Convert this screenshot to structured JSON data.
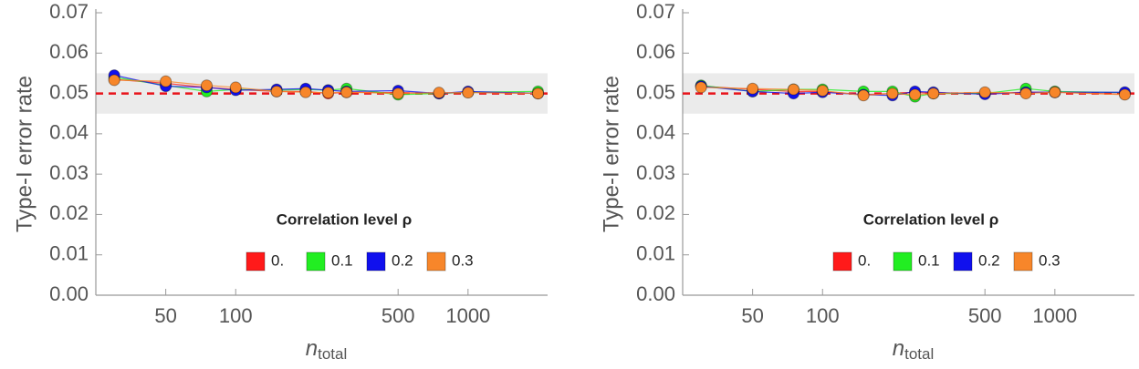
{
  "chart_data": [
    {
      "type": "line",
      "ylabel": "Type-I error rate",
      "xlabel": "n",
      "xlabel_sub": "total",
      "legend_title": "Correlation level ρ",
      "legend": "lower right",
      "xscale": "log",
      "x": [
        30,
        50,
        75,
        100,
        150,
        200,
        250,
        300,
        500,
        750,
        1000,
        2000
      ],
      "xlim": [
        25,
        2200
      ],
      "xticks": [
        50,
        100,
        500,
        1000
      ],
      "ylim": [
        0,
        0.07
      ],
      "yticks": [
        {
          "value": 0,
          "label": "0.00"
        },
        {
          "value": 0.01,
          "label": "0.01"
        },
        {
          "value": 0.02,
          "label": "0.02"
        },
        {
          "value": 0.03,
          "label": "0.03"
        },
        {
          "value": 0.04,
          "label": "0.04"
        },
        {
          "value": 0.05,
          "label": "0.05"
        },
        {
          "value": 0.06,
          "label": "0.06"
        },
        {
          "value": 0.07,
          "label": "0.07"
        }
      ],
      "band": [
        0.045,
        0.055
      ],
      "band_color": "#ebebeb",
      "hline": 0.05,
      "hline_color": "#e8141b",
      "series": [
        {
          "name": "0.",
          "color": "#ff1a1a",
          "values": [
            0.0535,
            0.0525,
            0.0515,
            0.051,
            0.0505,
            0.0505,
            0.05,
            0.0503,
            0.0502,
            0.05,
            0.0503,
            0.05
          ]
        },
        {
          "name": "0.1",
          "color": "#22ee22",
          "values": [
            0.054,
            0.052,
            0.0505,
            0.051,
            0.0508,
            0.051,
            0.0508,
            0.0512,
            0.0497,
            0.05,
            0.0503,
            0.0505
          ]
        },
        {
          "name": "0.2",
          "color": "#1010ee",
          "values": [
            0.0545,
            0.0518,
            0.0515,
            0.0508,
            0.051,
            0.0512,
            0.0508,
            0.0505,
            0.0507,
            0.05,
            0.0505,
            0.05
          ]
        },
        {
          "name": "0.3",
          "color": "#f7862a",
          "values": [
            0.0533,
            0.053,
            0.052,
            0.0515,
            0.0505,
            0.0503,
            0.0502,
            0.0503,
            0.05,
            0.0502,
            0.0502,
            0.05
          ]
        }
      ]
    },
    {
      "type": "line",
      "ylabel": "Type-I error rate",
      "xlabel": "n",
      "xlabel_sub": "total",
      "legend_title": "Correlation level ρ",
      "legend": "lower right",
      "xscale": "log",
      "x": [
        30,
        50,
        75,
        100,
        150,
        200,
        250,
        300,
        500,
        750,
        1000,
        2000
      ],
      "xlim": [
        25,
        2200
      ],
      "xticks": [
        50,
        100,
        500,
        1000
      ],
      "ylim": [
        0,
        0.07
      ],
      "yticks": [
        {
          "value": 0,
          "label": "0.00"
        },
        {
          "value": 0.01,
          "label": "0.01"
        },
        {
          "value": 0.02,
          "label": "0.02"
        },
        {
          "value": 0.03,
          "label": "0.03"
        },
        {
          "value": 0.04,
          "label": "0.04"
        },
        {
          "value": 0.05,
          "label": "0.05"
        },
        {
          "value": 0.06,
          "label": "0.06"
        },
        {
          "value": 0.07,
          "label": "0.07"
        }
      ],
      "band": [
        0.045,
        0.055
      ],
      "band_color": "#ebebeb",
      "hline": 0.05,
      "hline_color": "#e8141b",
      "series": [
        {
          "name": "0.",
          "color": "#ff1a1a",
          "values": [
            0.0518,
            0.051,
            0.0505,
            0.0505,
            0.0497,
            0.05,
            0.0503,
            0.05,
            0.05,
            0.0503,
            0.0503,
            0.0498
          ]
        },
        {
          "name": "0.1",
          "color": "#22ee22",
          "values": [
            0.052,
            0.0505,
            0.051,
            0.051,
            0.0505,
            0.0505,
            0.0492,
            0.05,
            0.05,
            0.0512,
            0.0505,
            0.0502
          ]
        },
        {
          "name": "0.2",
          "color": "#1010ee",
          "values": [
            0.0518,
            0.0505,
            0.05,
            0.0503,
            0.0497,
            0.0495,
            0.0505,
            0.0503,
            0.0498,
            0.0503,
            0.0503,
            0.0503
          ]
        },
        {
          "name": "0.3",
          "color": "#f7862a",
          "values": [
            0.0515,
            0.0512,
            0.051,
            0.0507,
            0.0495,
            0.05,
            0.0497,
            0.05,
            0.0503,
            0.05,
            0.0503,
            0.0497
          ]
        }
      ]
    }
  ]
}
